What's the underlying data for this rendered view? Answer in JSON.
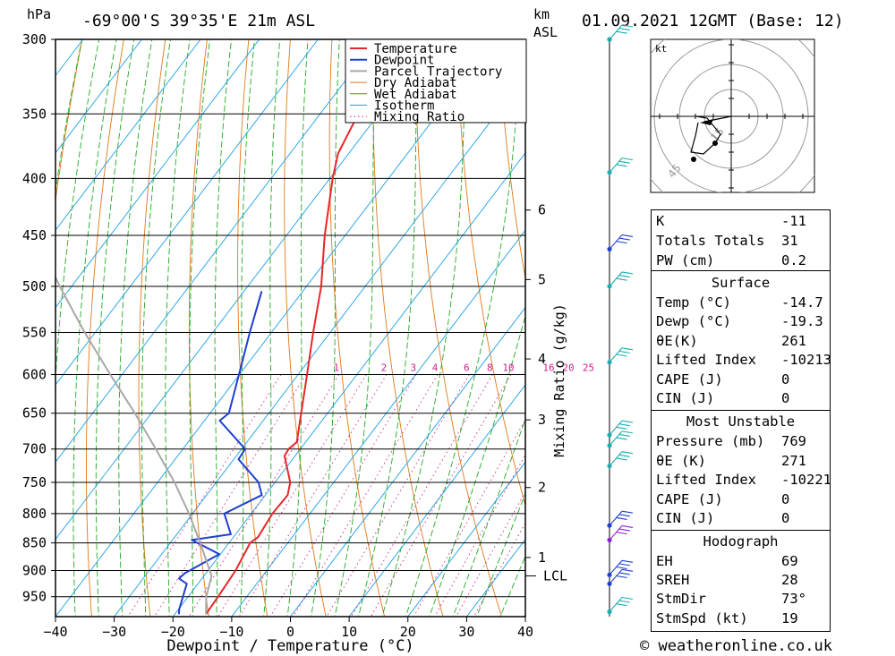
{
  "header": {
    "hpa_unit": "hPa",
    "location": "-69°00'S  39°35'E  21m  ASL",
    "km_unit": "km",
    "asl_unit": "ASL",
    "datetime": "01.09.2021  12GMT  (Base: 12)"
  },
  "chart_data": {
    "type": "line",
    "title": "",
    "xlabel": "Dewpoint / Temperature (°C)",
    "y2label": "Mixing Ratio (g/kg)",
    "xlim": [
      -40,
      40
    ],
    "plim": [
      300,
      990
    ],
    "y_scale": "log-pressure",
    "skew_per_km": 12.4,
    "x_ticks": [
      "-40",
      "-30",
      "-20",
      "-10",
      "0",
      "10",
      "20",
      "30",
      "40"
    ],
    "pressure_levels": [
      "300",
      "350",
      "400",
      "450",
      "500",
      "550",
      "600",
      "650",
      "700",
      "750",
      "800",
      "850",
      "900",
      "950"
    ],
    "km_ticks": [
      {
        "label": "6",
        "p": 427
      },
      {
        "label": "5",
        "p": 493
      },
      {
        "label": "4",
        "p": 581
      },
      {
        "label": "3",
        "p": 659
      },
      {
        "label": "2",
        "p": 758
      },
      {
        "label": "1",
        "p": 876
      }
    ],
    "lcl": {
      "label": "LCL",
      "p": 910
    },
    "mixing_ratio_labels": [
      "1",
      "2",
      "3",
      "4",
      "6",
      "8",
      "10",
      "16",
      "20",
      "25"
    ],
    "legend": {
      "position": "top-right",
      "entries": [
        "Temperature",
        "Dewpoint",
        "Parcel Trajectory",
        "Dry Adiabat",
        "Wet Adiabat",
        "Isotherm",
        "Mixing Ratio"
      ]
    },
    "colors": {
      "temperature": "#e8262a",
      "dewpoint": "#1f3fd0",
      "parcel": "#a8a8a8",
      "dry_adiabat": "#e0781a",
      "wet_adiabat": "#22aa22",
      "isotherm": "#1aa0e8",
      "mixing_ratio": "#cc2288"
    },
    "series": [
      {
        "name": "Temperature",
        "points": [
          [
            300,
            -56
          ],
          [
            320,
            -54.9
          ],
          [
            350,
            -53.5
          ],
          [
            380,
            -51.8
          ],
          [
            400,
            -49.5
          ],
          [
            450,
            -43.5
          ],
          [
            500,
            -37.5
          ],
          [
            550,
            -32.9
          ],
          [
            600,
            -28.5
          ],
          [
            650,
            -24.5
          ],
          [
            690,
            -21.5
          ],
          [
            700,
            -22
          ],
          [
            710,
            -21.8
          ],
          [
            750,
            -17.4
          ],
          [
            770,
            -16.2
          ],
          [
            800,
            -16.4
          ],
          [
            840,
            -15.8
          ],
          [
            850,
            -16.4
          ],
          [
            900,
            -15.3
          ],
          [
            950,
            -14.9
          ],
          [
            985,
            -14.7
          ]
        ]
      },
      {
        "name": "Dewpoint",
        "points": [
          [
            505,
            -47
          ],
          [
            550,
            -43.7
          ],
          [
            600,
            -40.1
          ],
          [
            650,
            -36.8
          ],
          [
            660,
            -37.4
          ],
          [
            700,
            -29.4
          ],
          [
            715,
            -29.2
          ],
          [
            750,
            -22.8
          ],
          [
            770,
            -20.6
          ],
          [
            800,
            -24.6
          ],
          [
            835,
            -20.8
          ],
          [
            845,
            -26.7
          ],
          [
            870,
            -20.2
          ],
          [
            905,
            -23.6
          ],
          [
            915,
            -23.9
          ],
          [
            925,
            -21.9
          ],
          [
            975,
            -19.9
          ],
          [
            985,
            -19.3
          ]
        ]
      },
      {
        "name": "Parcel Trajectory",
        "points": [
          [
            440,
            -95
          ],
          [
            500,
            -82
          ],
          [
            550,
            -71.8
          ],
          [
            600,
            -62
          ],
          [
            650,
            -52.8
          ],
          [
            700,
            -44.6
          ],
          [
            750,
            -37.1
          ],
          [
            800,
            -30.6
          ],
          [
            850,
            -24.9
          ],
          [
            910,
            -18.7
          ],
          [
            950,
            -16.9
          ],
          [
            985,
            -14.7
          ]
        ]
      }
    ]
  },
  "legend_labels": [
    "Temperature",
    "Dewpoint",
    "Parcel Trajectory",
    "Dry Adiabat",
    "Wet Adiabat",
    "Isotherm",
    "Mixing Ratio"
  ],
  "hodograph": {
    "unit": "kt",
    "rings": [
      "15",
      "45"
    ],
    "storm_motion_dir": 73,
    "storm_motion_speed": 19
  },
  "wind_barbs": [
    300,
    395,
    463,
    500,
    585,
    680,
    695,
    725,
    820,
    845,
    908,
    925,
    980
  ],
  "indices": {
    "general": [
      {
        "label": "K",
        "value": "-11"
      },
      {
        "label": "Totals Totals",
        "value": "31"
      },
      {
        "label": "PW (cm)",
        "value": "0.2"
      }
    ],
    "surface": {
      "title": "Surface",
      "rows": [
        {
          "label": "Temp (°C)",
          "value": "-14.7"
        },
        {
          "label": "Dewp (°C)",
          "value": "-19.3"
        },
        {
          "label": "θE(K)",
          "value": "261"
        },
        {
          "label": "Lifted Index",
          "value": "-10213"
        },
        {
          "label": "CAPE (J)",
          "value": "0"
        },
        {
          "label": "CIN (J)",
          "value": "0"
        }
      ]
    },
    "most_unstable": {
      "title": "Most Unstable",
      "rows": [
        {
          "label": "Pressure (mb)",
          "value": "769"
        },
        {
          "label": "θE (K)",
          "value": "271"
        },
        {
          "label": "Lifted Index",
          "value": "-10221"
        },
        {
          "label": "CAPE (J)",
          "value": "0"
        },
        {
          "label": "CIN (J)",
          "value": "0"
        }
      ]
    },
    "hodograph": {
      "title": "Hodograph",
      "rows": [
        {
          "label": "EH",
          "value": "69"
        },
        {
          "label": "SREH",
          "value": "28"
        },
        {
          "label": "StmDir",
          "value": "73°"
        },
        {
          "label": "StmSpd (kt)",
          "value": "19"
        }
      ]
    }
  },
  "footer": {
    "copyright": "© weatheronline.co.uk"
  }
}
